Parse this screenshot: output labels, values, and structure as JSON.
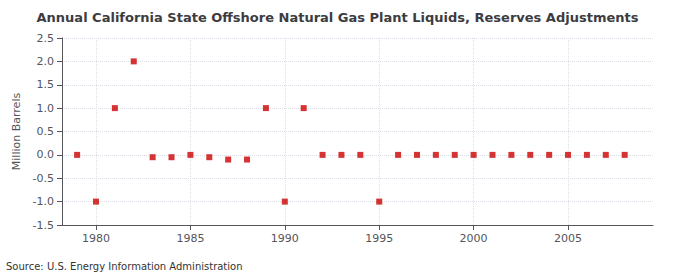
{
  "chart_data": {
    "type": "scatter",
    "title": "Annual California State Offshore Natural Gas Plant Liquids, Reserves Adjustments",
    "ylabel": "Million Barrels",
    "annotations": [
      "Source: U.S. Energy Information Administration"
    ],
    "x": [
      1979,
      1980,
      1981,
      1982,
      1983,
      1984,
      1985,
      1986,
      1987,
      1988,
      1989,
      1990,
      1991,
      1992,
      1993,
      1994,
      1995,
      1996,
      1997,
      1998,
      1999,
      2000,
      2001,
      2002,
      2003,
      2004,
      2005,
      2006,
      2007,
      2008
    ],
    "values": [
      0.0,
      -1.0,
      1.0,
      2.0,
      -0.05,
      -0.05,
      0.0,
      -0.05,
      -0.1,
      -0.1,
      1.0,
      -1.0,
      1.0,
      0.0,
      0.0,
      0.0,
      -1.0,
      0.0,
      0.0,
      0.0,
      0.0,
      0.0,
      0.0,
      0.0,
      0.0,
      0.0,
      0.0,
      0.0,
      0.0,
      0.0
    ],
    "color": "#cc0000",
    "marker": "square",
    "ylim": [
      -1.5,
      2.5
    ],
    "yticks": [
      -1.5,
      {
        "value": -1.0,
        "label": "-1.0"
      },
      -0.5,
      {
        "value": 0.0,
        "label": "0.0"
      },
      0.5,
      {
        "value": 1.0,
        "label": "1.0"
      },
      1.5,
      {
        "value": 2.0,
        "label": "2.0"
      },
      2.5
    ],
    "xlim": [
      1978.2,
      2009.5
    ],
    "xticks": [
      1980,
      1985,
      1990,
      1995,
      2000,
      2005
    ],
    "grid": true
  }
}
